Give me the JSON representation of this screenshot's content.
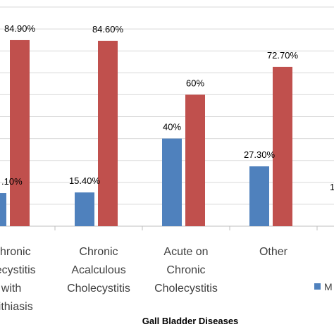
{
  "chart_data": {
    "type": "bar",
    "xlabel": "Gall Bladder Diseases",
    "ylim": [
      0,
      100
    ],
    "grid": true,
    "categories": [
      [
        "Chronic",
        "Cholecystitis",
        "with",
        "Cholelithiasis"
      ],
      [
        "Chronic",
        "Acalculous",
        "Cholecystitis"
      ],
      [
        "Acute on",
        "Chronic",
        "Cholecystitis"
      ],
      [
        "Other"
      ]
    ],
    "visible_category_lines": [
      [
        "Chronic",
        "olecystitis",
        "with",
        "elithiasis"
      ],
      [
        "Chronic",
        "Acalculous",
        "Cholecystitis"
      ],
      [
        "Acute on",
        "Chronic",
        "Cholecystitis"
      ],
      [
        "Other"
      ]
    ],
    "series": [
      {
        "color": "#4f81bd",
        "values": [
          15.1,
          15.4,
          40,
          27.3
        ]
      },
      {
        "color": "#c0504d",
        "values": [
          84.9,
          84.6,
          60,
          72.7
        ]
      }
    ],
    "data_labels": [
      [
        ".10%",
        "15.40%",
        "40%",
        "27.30%"
      ],
      [
        "84.90%",
        "84.60%",
        "60%",
        "72.70%"
      ]
    ],
    "legend": {
      "position": "right",
      "visible_text": "M"
    },
    "clipped_label": "1"
  }
}
